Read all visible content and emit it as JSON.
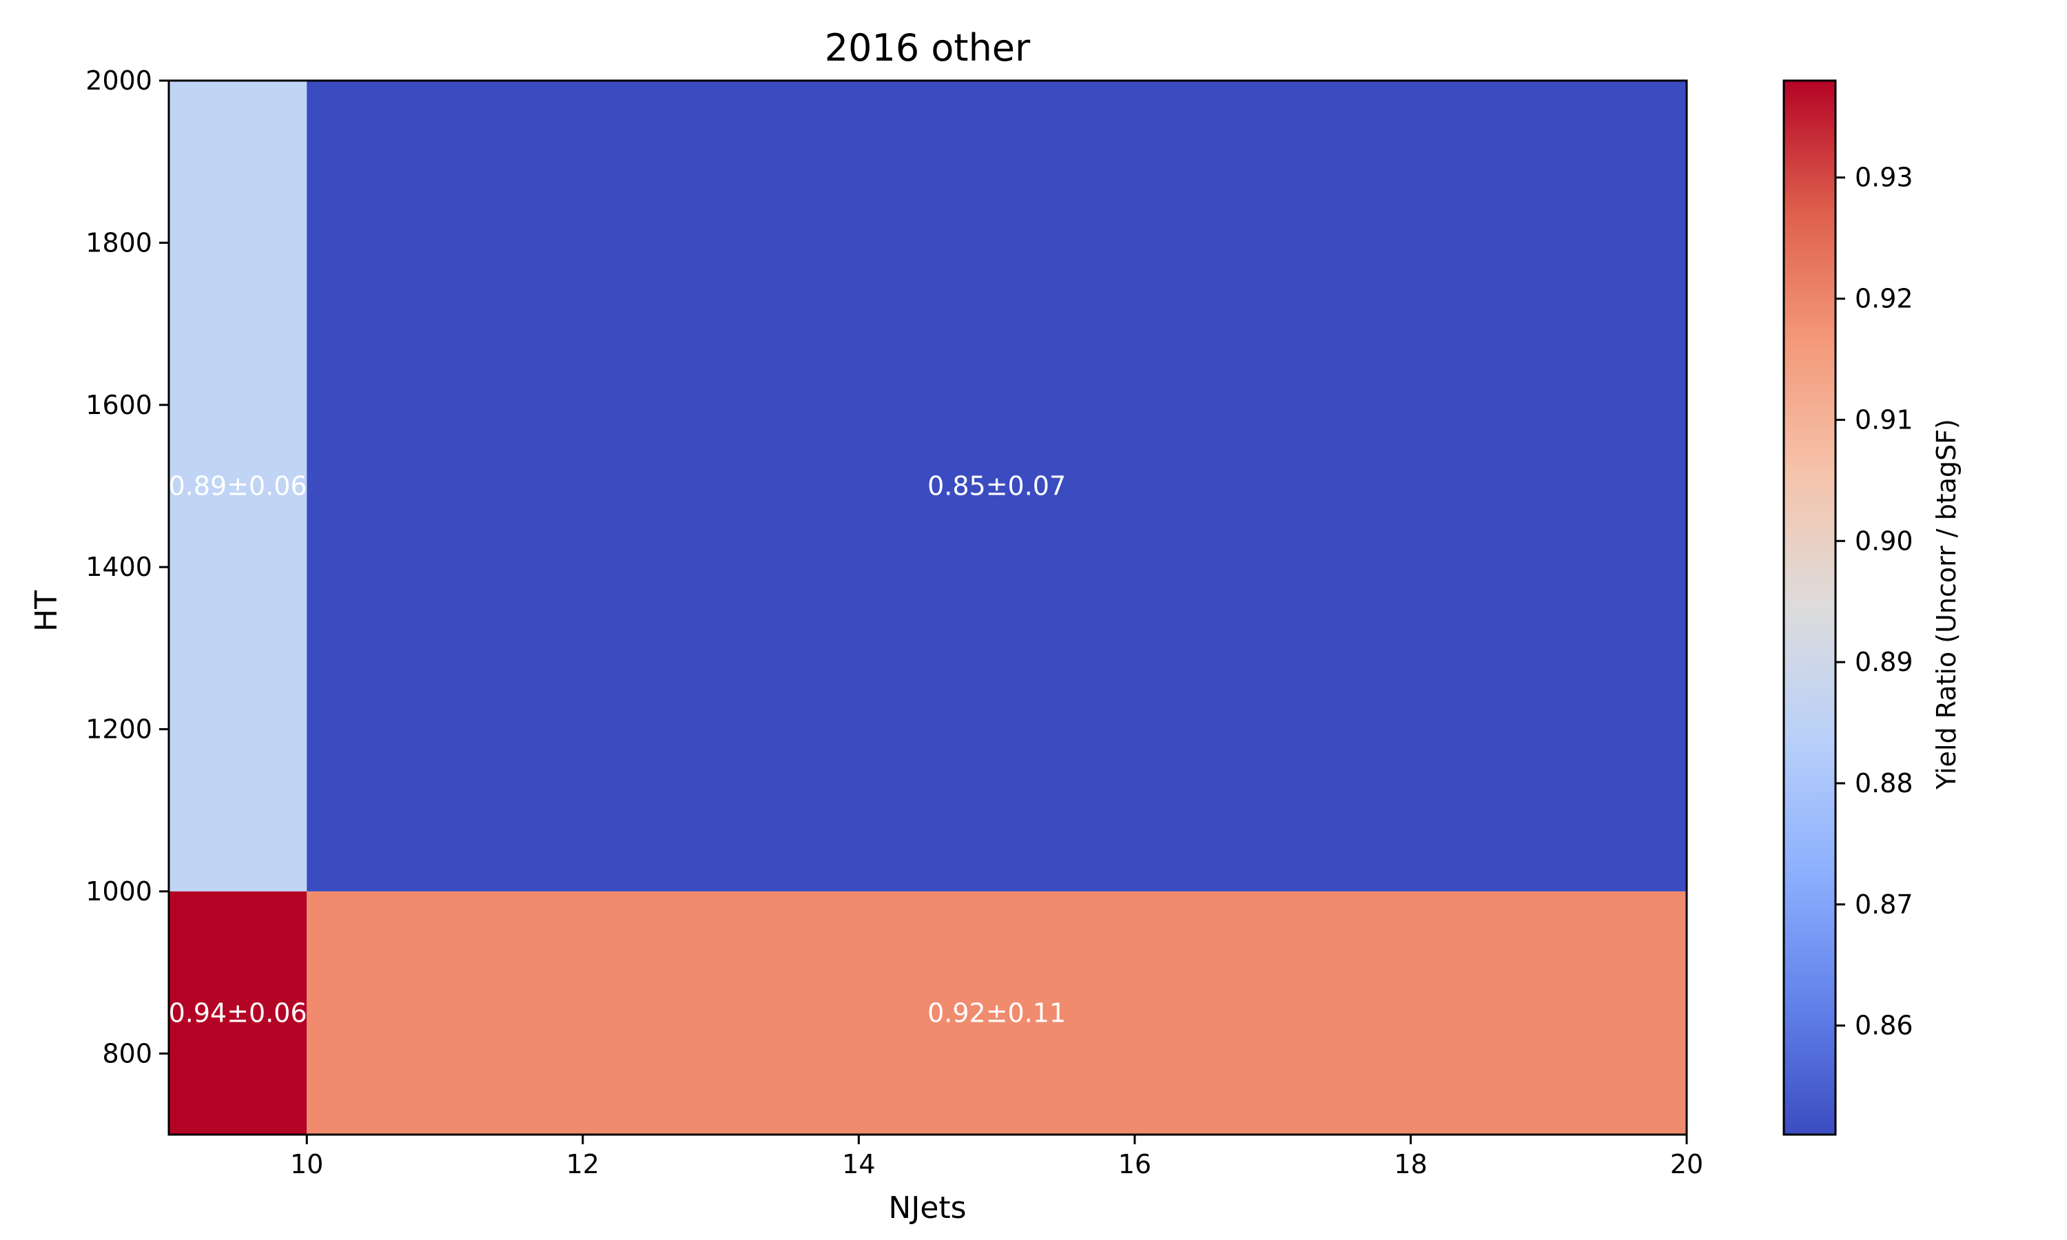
{
  "chart_data": {
    "type": "heatmap",
    "title": "2016 other",
    "xlabel": "NJets",
    "ylabel": "HT",
    "xlim": [
      9,
      20
    ],
    "ylim": [
      700,
      2000
    ],
    "xticks": [
      10,
      12,
      14,
      16,
      18,
      20
    ],
    "yticks": [
      800,
      1000,
      1200,
      1400,
      1600,
      1800,
      2000
    ],
    "x_edges": [
      9,
      10,
      20
    ],
    "y_edges": [
      700,
      1000,
      2000
    ],
    "cells": [
      {
        "x": [
          9,
          10
        ],
        "y": [
          700,
          1000
        ],
        "value": 0.938,
        "label": "0.94±0.06",
        "color": "#b40426"
      },
      {
        "x": [
          10,
          20
        ],
        "y": [
          700,
          1000
        ],
        "value": 0.92,
        "label": "0.92±0.11",
        "color": "#f08b6e"
      },
      {
        "x": [
          9,
          10
        ],
        "y": [
          1000,
          2000
        ],
        "value": 0.885,
        "label": "0.89±0.06",
        "color": "#c0d4f5"
      },
      {
        "x": [
          10,
          20
        ],
        "y": [
          1000,
          2000
        ],
        "value": 0.851,
        "label": "0.85±0.07",
        "color": "#3b4cc0"
      }
    ],
    "colorbar": {
      "label": "Yield Ratio (Uncorr / btagSF)",
      "range": [
        0.851,
        0.938
      ],
      "ticks": [
        0.86,
        0.87,
        0.88,
        0.89,
        0.9,
        0.91,
        0.92,
        0.93
      ],
      "tick_labels": [
        "0.86",
        "0.87",
        "0.88",
        "0.89",
        "0.90",
        "0.91",
        "0.92",
        "0.93"
      ],
      "colormap": "coolwarm",
      "stops": [
        "#3b4cc0",
        "#6282ea",
        "#8db0fe",
        "#b9d0f9",
        "#dddcdc",
        "#f5c4ac",
        "#f49a7b",
        "#de604d",
        "#b40426"
      ]
    }
  }
}
